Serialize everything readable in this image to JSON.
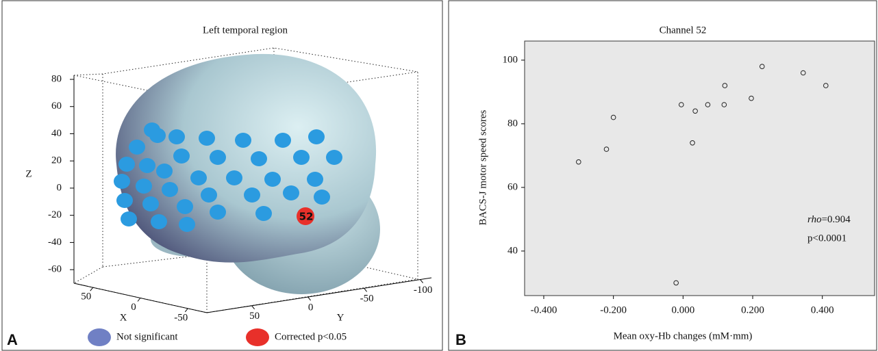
{
  "chart_data": [
    {
      "type": "brain3d",
      "title": "Left temporal region",
      "panel_label": "A",
      "xlabel": "X",
      "ylabel": "Y",
      "zlabel": "Z",
      "xlim": [
        70,
        -70
      ],
      "xticks": [
        50,
        0,
        -50
      ],
      "ylim": [
        90,
        -110
      ],
      "yticks": [
        50,
        0,
        -50,
        -100
      ],
      "zlim": [
        -70,
        80
      ],
      "zticks": [
        80,
        60,
        40,
        20,
        0,
        -20,
        -40,
        -60
      ],
      "marker_color": "#2b9be0",
      "series": [
        {
          "name": "Not significant",
          "color": "#7080c4"
        },
        {
          "name": "Corrected p<0.05",
          "color": "#e8302a"
        }
      ],
      "annotations": [
        "52"
      ]
    },
    {
      "type": "scatter",
      "title": "Channel 52",
      "panel_label": "B",
      "xlabel": "Mean oxy-Hb changes (mM·mm)",
      "ylabel": "BACS-J motor speed scores",
      "x": [
        -0.3,
        -0.22,
        -0.2,
        -0.005,
        -0.02,
        0.035,
        0.027,
        0.071,
        0.12,
        0.118,
        0.196,
        0.227,
        0.345,
        0.41
      ],
      "y": [
        68,
        72,
        82,
        86,
        30,
        84,
        74,
        86,
        92,
        86,
        88,
        98,
        96,
        92
      ],
      "xlim": [
        -0.455,
        0.55
      ],
      "ylim": [
        26,
        106
      ],
      "xticks": [
        {
          "value": -0.4,
          "label": "-0.400"
        },
        {
          "value": -0.2,
          "label": "-0.200"
        },
        {
          "value": 0,
          "label": "0.000"
        },
        {
          "value": 0.2,
          "label": "0.200"
        },
        {
          "value": 0.4,
          "label": "0.400"
        }
      ],
      "yticks": [
        40,
        60,
        80,
        100
      ],
      "background": "#e8e8e8",
      "annotations": [
        "rho",
        "=0.904",
        "p<0.0001"
      ]
    }
  ]
}
